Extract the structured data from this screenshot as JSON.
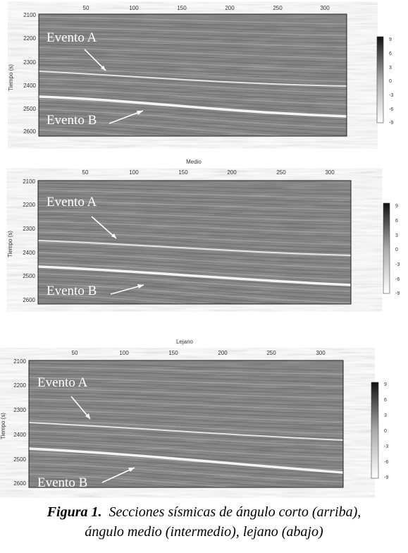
{
  "figure": {
    "caption_label": "Figura 1.",
    "caption_line1": "Secciones sísmicas de ángulo corto (arriba),",
    "caption_line2": "ángulo medio (intermedio), lejano (abajo)"
  },
  "panels": [
    {
      "title": "",
      "ylabel": "Tiempo (s)",
      "xticks": [
        "50",
        "100",
        "150",
        "200",
        "250",
        "300"
      ],
      "yticks": [
        "2100",
        "2200",
        "2300",
        "2400",
        "2500",
        "2600"
      ],
      "colorbar_ticks": [
        "9",
        "6",
        "3",
        "0",
        "-3",
        "-6",
        "-9"
      ],
      "annotations": [
        "Evento A",
        "Evento B"
      ]
    },
    {
      "title": "Medio",
      "ylabel": "Tiempo (s)",
      "xticks": [
        "50",
        "100",
        "150",
        "200",
        "250",
        "300"
      ],
      "yticks": [
        "2100",
        "2200",
        "2300",
        "2400",
        "2500",
        "2600"
      ],
      "colorbar_ticks": [
        "9",
        "6",
        "3",
        "0",
        "-3",
        "-6",
        "-9"
      ],
      "annotations": [
        "Evento A",
        "Evento B"
      ]
    },
    {
      "title": "Lejano",
      "ylabel": "Tiempo (s)",
      "xticks": [
        "50",
        "100",
        "150",
        "200",
        "250",
        "300"
      ],
      "yticks": [
        "2100",
        "2200",
        "2300",
        "2400",
        "2500",
        "2600"
      ],
      "colorbar_ticks": [
        "9",
        "6",
        "3",
        "0",
        "-3",
        "-6",
        "-9"
      ],
      "annotations": [
        "Evento A",
        "Evento B"
      ]
    }
  ],
  "chart_data": [
    {
      "type": "heatmap",
      "title": "",
      "ylabel": "Tiempo (s)",
      "xlim": [
        0,
        325
      ],
      "ylim": [
        2620,
        2100
      ],
      "colorbar_range": [
        -9,
        9
      ]
    },
    {
      "type": "heatmap",
      "title": "Medio",
      "ylabel": "Tiempo (s)",
      "xlim": [
        0,
        325
      ],
      "ylim": [
        2620,
        2100
      ],
      "colorbar_range": [
        -9,
        9
      ]
    },
    {
      "type": "heatmap",
      "title": "Lejano",
      "ylabel": "Tiempo (s)",
      "xlim": [
        0,
        325
      ],
      "ylim": [
        2620,
        2100
      ],
      "colorbar_range": [
        -9,
        9
      ]
    }
  ],
  "colors": {
    "seismic_bg": "#7a7a7a",
    "event_line": "#f2f2f2"
  }
}
